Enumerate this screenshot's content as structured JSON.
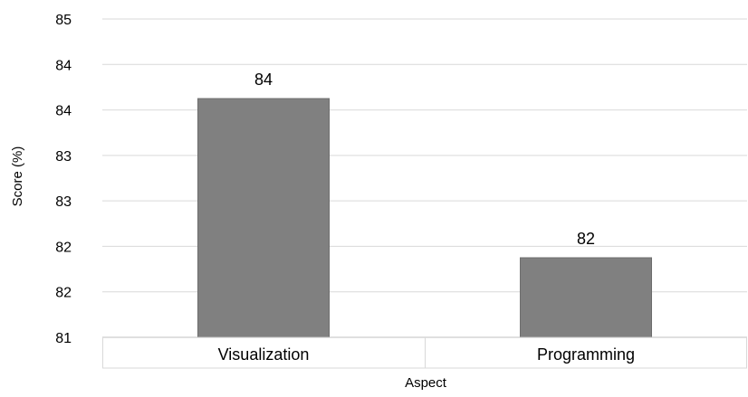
{
  "chart_data": {
    "type": "bar",
    "title": "",
    "xlabel": "Aspect",
    "ylabel": "Score (%)",
    "categories": [
      "Visualization",
      "Programming"
    ],
    "values": [
      84,
      82
    ],
    "data_labels": [
      "84",
      "82"
    ],
    "ylim": [
      81,
      85
    ],
    "y_tick_labels": [
      "81",
      "82",
      "82",
      "83",
      "83",
      "84",
      "84",
      "85"
    ],
    "grid": true,
    "legend": "none",
    "bar_color": "#808080",
    "grid_color": "#d9d9d9"
  }
}
